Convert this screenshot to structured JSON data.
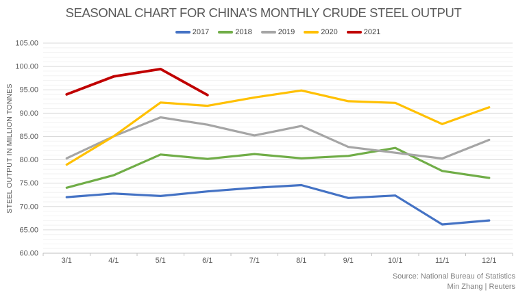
{
  "title": "SEASONAL CHART FOR CHINA'S MONTHLY CRUDE STEEL OUTPUT",
  "source": {
    "line1": "Source: National Bureau of Statistics",
    "line2": "Min Zhang | Reuters"
  },
  "chart_data": {
    "type": "line",
    "title": "SEASONAL CHART FOR CHINA'S MONTHLY CRUDE STEEL OUTPUT",
    "xlabel": "",
    "ylabel": "STEEL OUTPUT IN MILLION TONNES",
    "categories": [
      "3/1",
      "4/1",
      "5/1",
      "6/1",
      "7/1",
      "8/1",
      "9/1",
      "10/1",
      "11/1",
      "12/1"
    ],
    "series": [
      {
        "name": "2017",
        "color": "#4472c4",
        "values": [
          72.0,
          72.78,
          72.26,
          73.23,
          74.02,
          74.59,
          71.83,
          72.36,
          66.15,
          67.02
        ]
      },
      {
        "name": "2018",
        "color": "#70ad47",
        "values": [
          74.03,
          76.7,
          81.13,
          80.2,
          81.24,
          80.33,
          80.85,
          82.55,
          77.62,
          76.12
        ]
      },
      {
        "name": "2019",
        "color": "#a5a5a5",
        "values": [
          80.33,
          85.03,
          89.09,
          87.53,
          85.22,
          87.25,
          82.77,
          81.52,
          80.29,
          84.27
        ]
      },
      {
        "name": "2020",
        "color": "#ffc000",
        "values": [
          78.97,
          85.03,
          92.27,
          91.58,
          93.36,
          94.85,
          92.56,
          92.2,
          87.66,
          91.25
        ]
      },
      {
        "name": "2021",
        "color": "#c00000",
        "values": [
          94.02,
          97.85,
          99.45,
          93.88,
          null,
          null,
          null,
          null,
          null,
          null
        ]
      }
    ],
    "ylim": [
      60,
      105
    ],
    "ytick_major_step": 5,
    "ytick_minor_step": 1,
    "ytick_format_decimals": 2,
    "grid": true,
    "legend_position": "top",
    "colors": {
      "grid_major": "#dadada",
      "grid_minor": "#f2f2f2",
      "axis_line": "#bfbfbf",
      "title_text": "#595959",
      "tick_text": "#595959",
      "source_text": "#7f7f7f"
    }
  }
}
